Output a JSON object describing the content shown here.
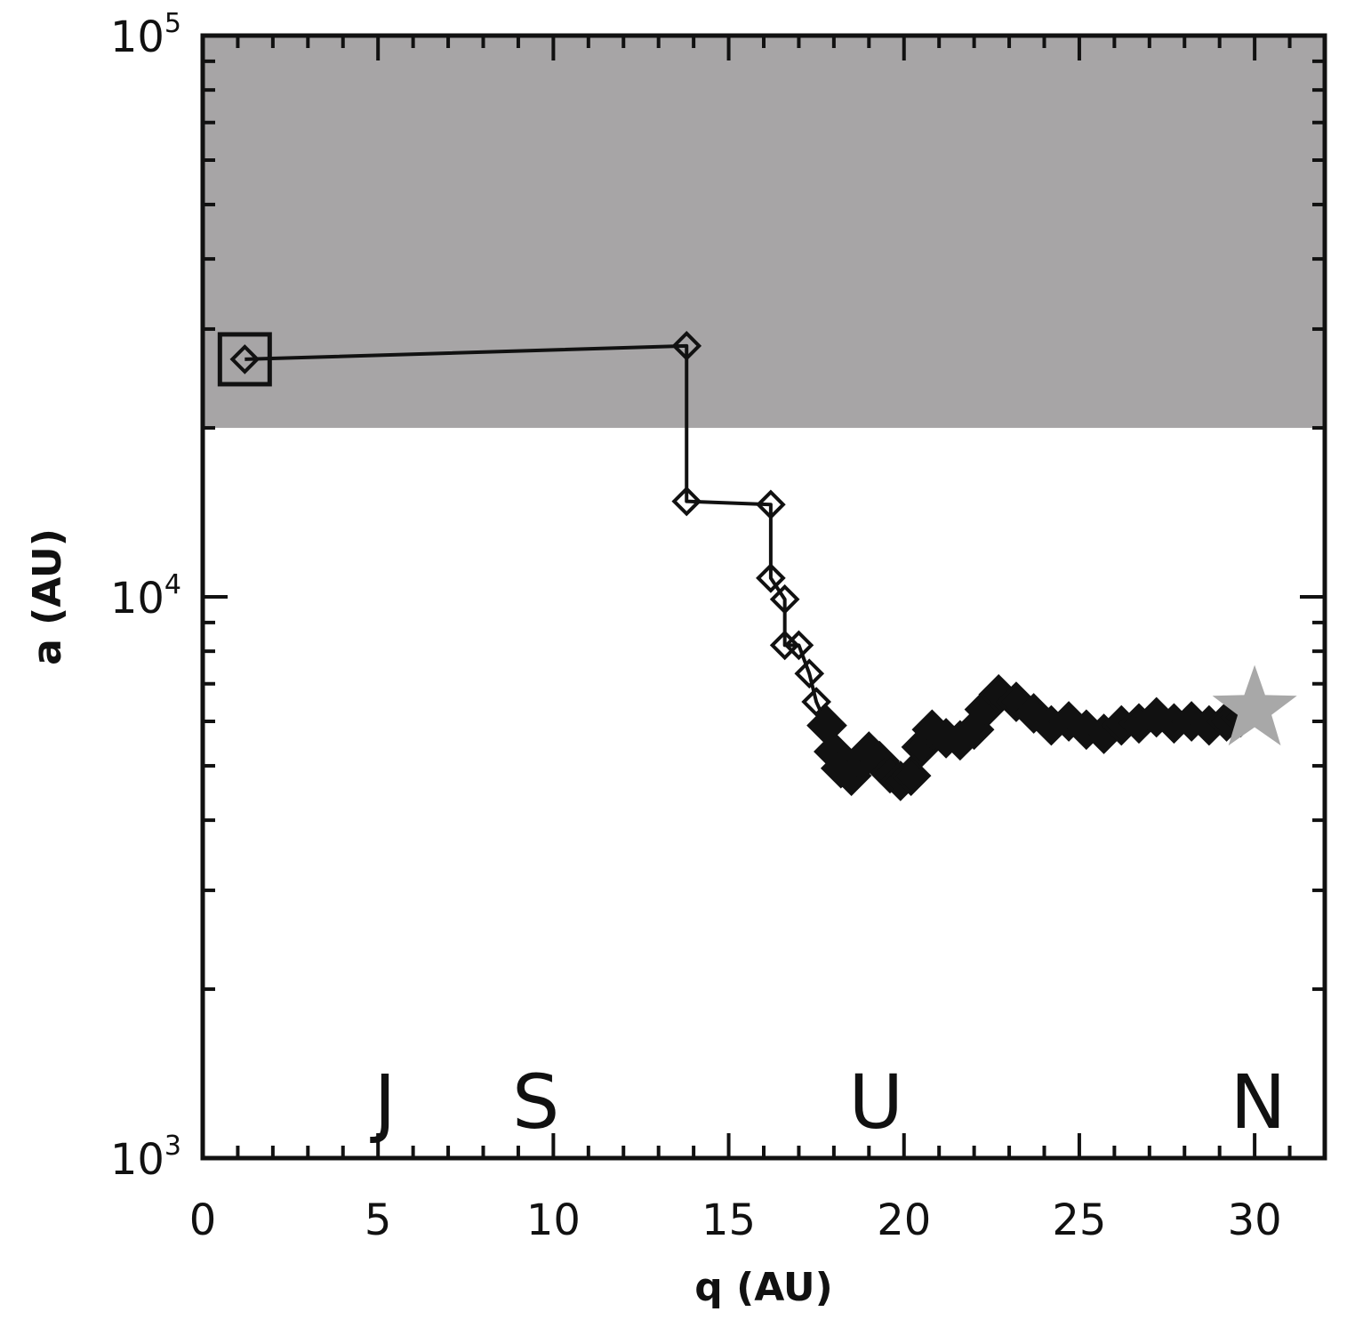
{
  "chart_data": {
    "type": "scatter",
    "title": "",
    "xlabel": "q (AU)",
    "ylabel": "a (AU)",
    "xlim": [
      0,
      32
    ],
    "ylim": [
      1000,
      100000
    ],
    "yscale": "log",
    "x_ticks": [
      0,
      5,
      10,
      15,
      20,
      25,
      30
    ],
    "x_tick_labels": [
      "0",
      "5",
      "10",
      "15",
      "20",
      "25",
      "30"
    ],
    "y_ticks": [
      {
        "value": 1000,
        "base": "10",
        "exp": "3"
      },
      {
        "value": 10000,
        "base": "10",
        "exp": "4"
      },
      {
        "value": 100000,
        "base": "10",
        "exp": "5"
      }
    ],
    "shaded_region": {
      "y_from": 20000,
      "y_to": 100000,
      "color": "#a7a5a6"
    },
    "planets": [
      {
        "label": "J",
        "q": 5.2
      },
      {
        "label": "S",
        "q": 9.5
      },
      {
        "label": "U",
        "q": 19.2
      },
      {
        "label": "N",
        "q": 30.1
      }
    ],
    "start_marker": {
      "shape": "square",
      "q": 1.2,
      "a": 26500
    },
    "end_marker": {
      "shape": "star",
      "q": 30.0,
      "a": 6300,
      "color": "#a8a8a8"
    },
    "series": [
      {
        "marker": "diamond",
        "line_color": "#111111",
        "points": [
          [
            1.2,
            26500
          ],
          [
            13.8,
            28000
          ],
          [
            13.8,
            14800
          ],
          [
            16.2,
            14600
          ],
          [
            16.2,
            10800
          ],
          [
            16.6,
            9900
          ],
          [
            16.6,
            8200
          ],
          [
            17.0,
            8200
          ],
          [
            17.3,
            7300
          ],
          [
            17.5,
            6500
          ],
          [
            17.8,
            5900
          ],
          [
            18.0,
            5300
          ],
          [
            18.2,
            4950
          ],
          [
            18.5,
            4800
          ],
          [
            18.8,
            5100
          ],
          [
            19.0,
            5300
          ],
          [
            19.3,
            5100
          ],
          [
            19.6,
            4850
          ],
          [
            19.9,
            4700
          ],
          [
            20.2,
            4800
          ],
          [
            20.5,
            5400
          ],
          [
            20.8,
            5800
          ],
          [
            21.2,
            5600
          ],
          [
            21.6,
            5550
          ],
          [
            22.0,
            5800
          ],
          [
            22.3,
            6300
          ],
          [
            22.7,
            6700
          ],
          [
            23.2,
            6500
          ],
          [
            23.7,
            6200
          ],
          [
            24.2,
            5900
          ],
          [
            24.7,
            6000
          ],
          [
            25.2,
            5800
          ],
          [
            25.7,
            5700
          ],
          [
            26.2,
            5900
          ],
          [
            26.7,
            5950
          ],
          [
            27.2,
            6100
          ],
          [
            27.7,
            5950
          ],
          [
            28.2,
            6000
          ],
          [
            28.7,
            5900
          ],
          [
            29.2,
            6000
          ],
          [
            29.6,
            6100
          ]
        ]
      }
    ]
  }
}
